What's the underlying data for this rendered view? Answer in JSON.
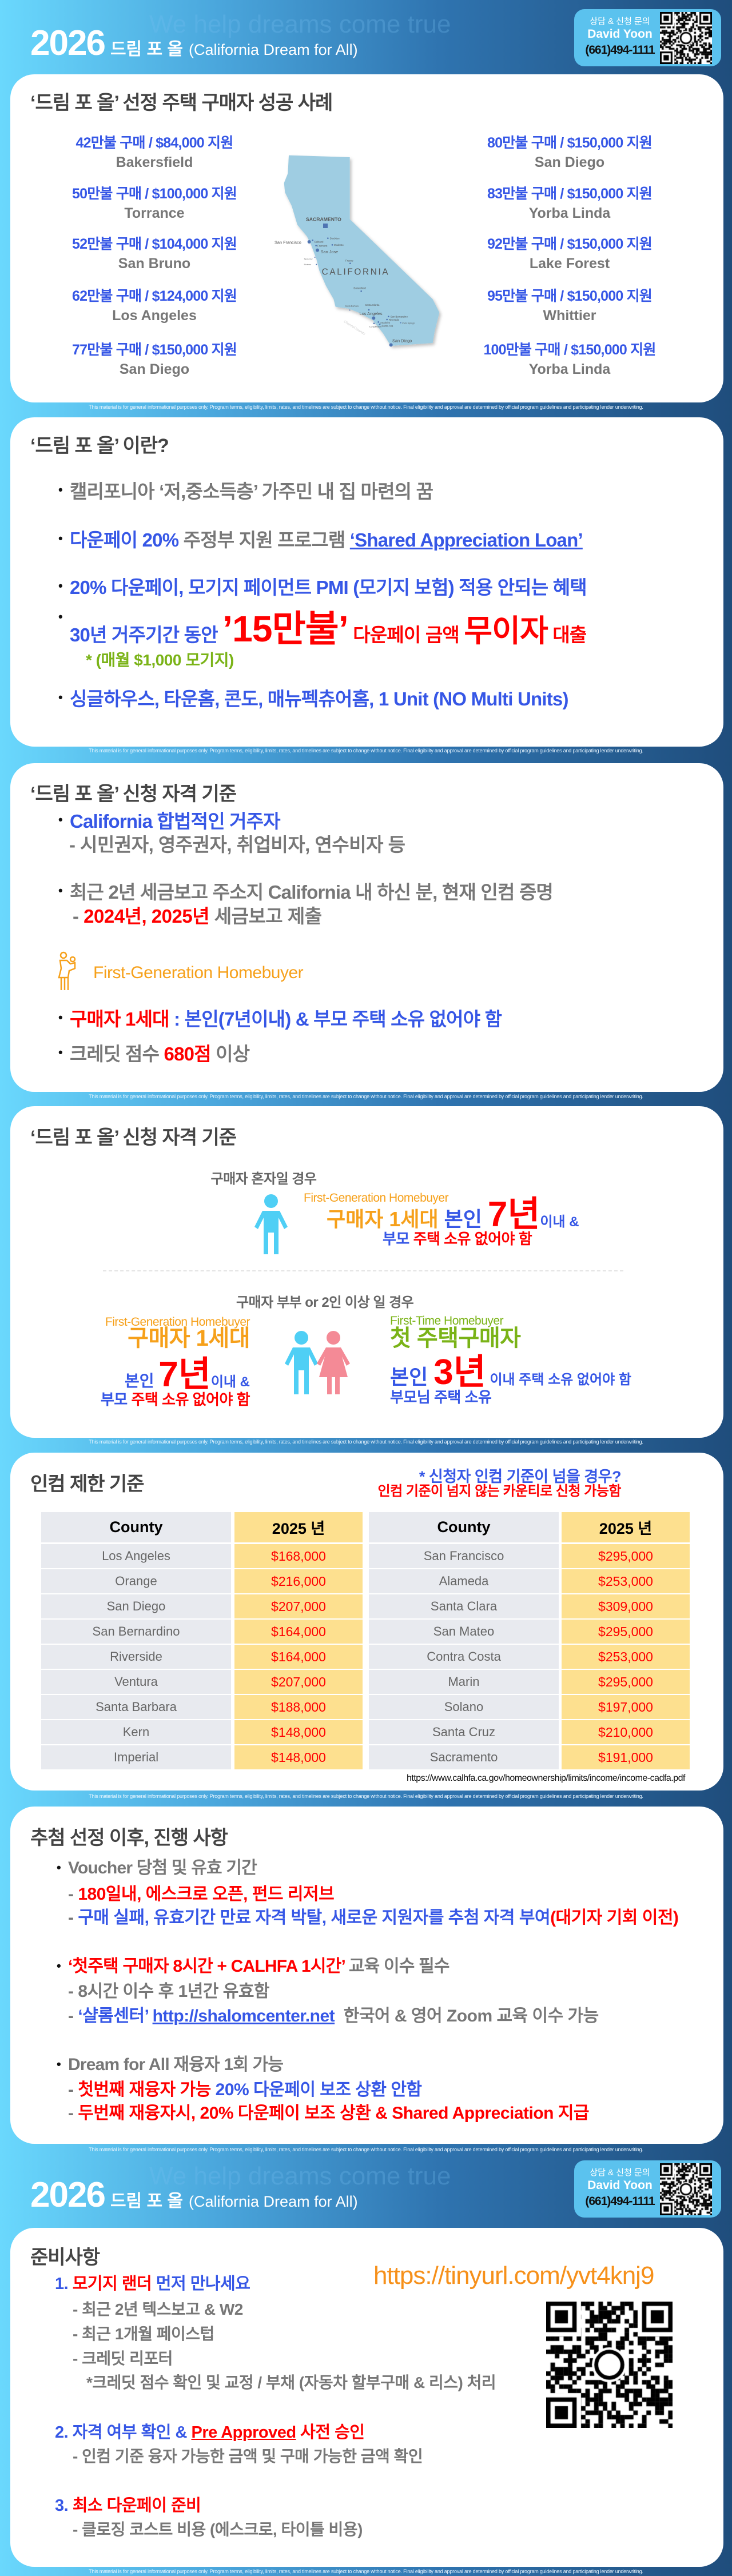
{
  "header": {
    "year": "2026",
    "title": "드림 포 올",
    "subtitle": "(California Dream for All)",
    "tagline": "We help dreams come true",
    "contact": {
      "label": "상담 & 신청 문의",
      "name": "David Yoon",
      "phone": "(661)494-1111"
    }
  },
  "disclaimer": "This material is for general informational purposes only. Program terms, eligibility, limits, rates, and timelines are subject to change without notice. Final eligibility and approval are determined by official program guidelines and participating lender underwriting.",
  "colors": {
    "blue": "#3657e6",
    "red": "#ff0000",
    "gray": "#777777",
    "dark": "#444444",
    "green": "#7ab317",
    "orange": "#f6a01a",
    "figure_blue": "#4fcff5",
    "figure_pink": "#f48a96",
    "map": "#9fcde2",
    "table_gray": "#e8eaef",
    "table_yellow": "#fde08f"
  },
  "success": {
    "title": "‘드림 포 올’ 선정 주택 구매자 성공 사례",
    "left": [
      {
        "amount": "42만불 구매 / $84,000 지원",
        "city": "Bakersfield"
      },
      {
        "amount": "50만불 구매 / $100,000 지원",
        "city": "Torrance"
      },
      {
        "amount": "52만불 구매 / $104,000 지원",
        "city": "San Bruno"
      },
      {
        "amount": "62만불 구매 / $124,000 지원",
        "city": "Los Angeles"
      },
      {
        "amount": "77만불 구매 / $150,000 지원",
        "city": "San Diego"
      }
    ],
    "right": [
      {
        "amount": "80만불 구매 / $150,000 지원",
        "city": "San Diego"
      },
      {
        "amount": "83만불 구매 / $150,000 지원",
        "city": "Yorba Linda"
      },
      {
        "amount": "92만불 구매 / $150,000 지원",
        "city": "Lake Forest"
      },
      {
        "amount": "95만불 구매 / $150,000 지원",
        "city": "Whittier"
      },
      {
        "amount": "100만불 구매 / $150,000 지원",
        "city": "Yorba Linda"
      }
    ],
    "map_labels": [
      "SACRAMENTO",
      "San Francisco",
      "Oakland",
      "Stockton",
      "Fremont",
      "Modesto",
      "San Jose",
      "Santa Cruz",
      "Monterey",
      "Fresno",
      "CALIFORNIA",
      "Bakersfield",
      "Santa Clarita",
      "Santa Barbara",
      "Los Angeles",
      "San Bernardino",
      "Riverside",
      "Anaheim",
      "Santa Ana",
      "Palm Springs",
      "Long Beach",
      "San Diego",
      "Channel Islands"
    ]
  },
  "about": {
    "title": "‘드림 포 올’ 이란?",
    "bullets": [
      [
        {
          "t": "캘리포니아 ‘저,중소득층’ 가주민 내 집 마련의 꿈",
          "c": "gray"
        }
      ],
      [
        {
          "t": "다운페이 20% ",
          "c": "blue"
        },
        {
          "t": "주정부 지원 프로그램 ",
          "c": "gray"
        },
        {
          "t": "‘Shared Appreciation Loan’",
          "c": "blue",
          "link": true
        }
      ],
      [
        {
          "t": "20% 다운페이, 모기지 페이먼트 PMI (모기지 보험) 적용 안되는 혜택",
          "c": "blue"
        }
      ],
      [
        {
          "t": "30년 거주기간 동안 ",
          "c": "blue"
        },
        {
          "t": "’15만불’",
          "c": "red",
          "em": "xl"
        },
        {
          "t": " 다운페이 금액 ",
          "c": "red"
        },
        {
          "t": "무이자",
          "c": "red",
          "em": "lg"
        },
        {
          "t": " 대출",
          "c": "red"
        }
      ],
      [
        {
          "t": "싱글하우스, 타운홈, 콘도, 매뉴펙츄어홈, 1 Unit (NO Multi Units)",
          "c": "blue"
        }
      ]
    ],
    "note": "* (매월 $1,000 모기지)"
  },
  "eligibility": {
    "title": "‘드림 포 올’ 신청 자격 기준",
    "lines": [
      [
        {
          "t": "California 합법적인 거주자",
          "c": "blue"
        }
      ],
      [
        {
          "t": "- 시민권자, 영주권자, 취업비자, 연수비자 등",
          "c": "gray"
        }
      ],
      [
        {
          "t": "최근 2년 세금보고 주소지 California 내 하신 분, 현재 인컴 증명",
          "c": "gray"
        }
      ],
      [
        {
          "t": "- ",
          "c": "gray"
        },
        {
          "t": "2024년, 2025년",
          "c": "red"
        },
        {
          "t": " 세금보고 제출",
          "c": "gray"
        }
      ],
      [
        {
          "t": "구매자 1세대",
          "c": "red"
        },
        {
          "t": " : 본인(7년이내) & 부모 주택 소유 없어야 함",
          "c": "blue"
        }
      ],
      [
        {
          "t": "크레딧 점수 ",
          "c": "gray"
        },
        {
          "t": "680점",
          "c": "red"
        },
        {
          "t": " 이상",
          "c": "gray"
        }
      ]
    ],
    "fgh_label": "First-Generation Homebuyer"
  },
  "criteria": {
    "title": "‘드림 포 올’ 신청 자격 기준",
    "single": {
      "label": "구매자 혼자일 경우",
      "tag": "First-Generation Homebuyer",
      "line1": [
        {
          "t": "구매자 1세대 ",
          "c": "orange"
        },
        {
          "t": "본인 ",
          "c": "blue"
        },
        {
          "t": "7년",
          "c": "red",
          "em": "big"
        },
        {
          "t": "이내 &",
          "c": "blue",
          "em": "sm"
        }
      ],
      "line2": [
        {
          "t": "부모 ",
          "c": "blue"
        },
        {
          "t": "주택 소유 없어야 함",
          "c": "red"
        }
      ]
    },
    "couple": {
      "label": "구매자 부부 or 2인 이상 일 경우",
      "left": {
        "tag": "First-Generation Homebuyer",
        "headline": "구매자 1세대",
        "line1": [
          {
            "t": "본인 ",
            "c": "blue"
          },
          {
            "t": "7년",
            "c": "red",
            "em": "big"
          },
          {
            "t": "이내 &",
            "c": "blue",
            "em": "sm"
          }
        ],
        "line2": [
          {
            "t": "부모 ",
            "c": "blue"
          },
          {
            "t": "주택 소유 없어야 함",
            "c": "red"
          }
        ]
      },
      "right": {
        "tag": "First-Time Homebuyer",
        "headline": "첫 주택구매자",
        "line1": [
          {
            "t": "본인 ",
            "c": "blue"
          },
          {
            "t": "3년",
            "c": "red",
            "em": "big"
          },
          {
            "t": " 이내 주택 소유 없어야 함",
            "c": "blue",
            "em": "sm"
          }
        ],
        "line2": [
          {
            "t": "부모님 주택 소유",
            "c": "blue"
          }
        ]
      }
    }
  },
  "income": {
    "title": "인컴 제한 기준",
    "note1": "* 신청자 인컴 기준이 넘을 경우?",
    "note2": "인컴 기준이 넘지 않는 카운티로 신청 가능함",
    "headers": [
      "County",
      "2025 년"
    ],
    "left": [
      [
        "Los Angeles",
        "$168,000"
      ],
      [
        "Orange",
        "$216,000"
      ],
      [
        "San Diego",
        "$207,000"
      ],
      [
        "San Bernardino",
        "$164,000"
      ],
      [
        "Riverside",
        "$164,000"
      ],
      [
        "Ventura",
        "$207,000"
      ],
      [
        "Santa Barbara",
        "$188,000"
      ],
      [
        "Kern",
        "$148,000"
      ],
      [
        "Imperial",
        "$148,000"
      ]
    ],
    "right": [
      [
        "San Francisco",
        "$295,000"
      ],
      [
        "Alameda",
        "$253,000"
      ],
      [
        "Santa Clara",
        "$309,000"
      ],
      [
        "San Mateo",
        "$295,000"
      ],
      [
        "Contra Costa",
        "$253,000"
      ],
      [
        "Marin",
        "$295,000"
      ],
      [
        "Solano",
        "$197,000"
      ],
      [
        "Santa Cruz",
        "$210,000"
      ],
      [
        "Sacramento",
        "$191,000"
      ]
    ],
    "source": "https://www.calhfa.ca.gov/homeownership/limits/income/income-cadfa.pdf"
  },
  "process": {
    "title": "추첨 선정 이후, 진행 사항",
    "lines": [
      [
        {
          "t": "Voucher 당첨 및 유효 기간",
          "c": "gray"
        }
      ],
      [
        {
          "t": "- ",
          "c": "gray"
        },
        {
          "t": "180일내, 에스크로 오픈, 펀드 리저브",
          "c": "red"
        }
      ],
      [
        {
          "t": "- ",
          "c": "gray"
        },
        {
          "t": "구매 실패, 유효기간 만료 자격 박탈, 새로운 지원자를 추첨 자격 부여",
          "c": "blue"
        },
        {
          "t": "(대기자 기회 이전)",
          "c": "red"
        }
      ],
      [
        {
          "t": "‘첫주택 구매자 8시간 + CALHFA 1시간’",
          "c": "red"
        },
        {
          "t": " 교육 이수 필수",
          "c": "gray"
        }
      ],
      [
        {
          "t": "- 8시간 이수 후 1년간 유효함",
          "c": "gray"
        }
      ],
      [
        {
          "t": "- ",
          "c": "gray"
        },
        {
          "t": "‘샬롬센터’ ",
          "c": "blue"
        },
        {
          "t": "http://shalomcenter.net",
          "c": "blue",
          "link": true
        },
        {
          "t": "  한국어 & 영어 Zoom 교육 이수 가능",
          "c": "gray"
        }
      ],
      [
        {
          "t": "Dream for All 재융자 1회 가능",
          "c": "gray"
        }
      ],
      [
        {
          "t": "- ",
          "c": "gray"
        },
        {
          "t": "첫번째 재융자 가능 ",
          "c": "red"
        },
        {
          "t": "20% 다운페이 보조 상환 안함",
          "c": "blue"
        }
      ],
      [
        {
          "t": "- ",
          "c": "gray"
        },
        {
          "t": "두번째 재융자시, 20% 다운페이 보조 상환 & Shared Appreciation 지급",
          "c": "red"
        }
      ]
    ]
  },
  "prep": {
    "title": "준비사항",
    "url": "https://tinyurl.com/yvt4knj9",
    "lines": [
      [
        {
          "t": "1. ",
          "c": "blue"
        },
        {
          "t": "모기지 랜더",
          "c": "red"
        },
        {
          "t": " 먼저 만나세요",
          "c": "blue"
        }
      ],
      [
        {
          "t": "- 최근 2년 텍스보고 & W2",
          "c": "gray"
        }
      ],
      [
        {
          "t": "- 최근 1개월 페이스텁",
          "c": "gray"
        }
      ],
      [
        {
          "t": "- 크레딧 리포터",
          "c": "gray"
        }
      ],
      [
        {
          "t": "*크레딧 점수 확인 및 교정 / 부채 (자동차 할부구매 & 리스) 처리",
          "c": "gray"
        }
      ],
      [
        {
          "t": "2. 자격 여부 확인 & ",
          "c": "blue"
        },
        {
          "t": "Pre Approved",
          "c": "red",
          "link": true
        },
        {
          "t": " 사전 승인",
          "c": "red"
        }
      ],
      [
        {
          "t": "- 인컴 기준 융자 가능한 금액 및 구매 가능한 금액 확인",
          "c": "gray"
        }
      ],
      [
        {
          "t": "3. ",
          "c": "blue"
        },
        {
          "t": "최소 다운페이 준비",
          "c": "red"
        }
      ],
      [
        {
          "t": "- 클로징 코스트 비용 (에스크로, 타이틀 비용)",
          "c": "gray"
        }
      ]
    ]
  }
}
